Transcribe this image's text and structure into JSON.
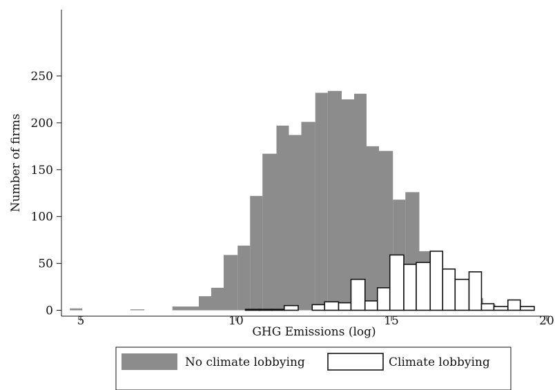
{
  "chart_data": {
    "type": "histogram",
    "xlabel": "GHG Emissions (log)",
    "ylabel": "Number of firms",
    "xlim": [
      4.6,
      20.0
    ],
    "ylim": [
      0,
      255
    ],
    "xticks": [
      5,
      10,
      15,
      20
    ],
    "yticks": [
      0,
      50,
      100,
      150,
      200,
      250
    ],
    "grid": false,
    "legend_position": "bottom",
    "series": [
      {
        "name": "No climate lobbying",
        "style": "filled",
        "color": "#8c8c8c",
        "bins": [
          {
            "x0": 4.65,
            "x1": 5.05,
            "value": 2
          },
          {
            "x0": 6.6,
            "x1": 7.05,
            "value": 1
          },
          {
            "x0": 7.95,
            "x1": 8.4,
            "value": 4
          },
          {
            "x0": 8.4,
            "x1": 8.8,
            "value": 4
          },
          {
            "x0": 8.8,
            "x1": 9.2,
            "value": 15
          },
          {
            "x0": 9.2,
            "x1": 9.6,
            "value": 24
          },
          {
            "x0": 9.6,
            "x1": 10.05,
            "value": 59
          },
          {
            "x0": 10.05,
            "x1": 10.45,
            "value": 69
          },
          {
            "x0": 10.45,
            "x1": 10.85,
            "value": 122
          },
          {
            "x0": 10.85,
            "x1": 11.3,
            "value": 167
          },
          {
            "x0": 11.3,
            "x1": 11.7,
            "value": 197
          },
          {
            "x0": 11.7,
            "x1": 12.1,
            "value": 187
          },
          {
            "x0": 12.1,
            "x1": 12.55,
            "value": 201
          },
          {
            "x0": 12.55,
            "x1": 12.95,
            "value": 232
          },
          {
            "x0": 12.95,
            "x1": 13.4,
            "value": 234
          },
          {
            "x0": 13.4,
            "x1": 13.8,
            "value": 225
          },
          {
            "x0": 13.8,
            "x1": 14.2,
            "value": 231
          },
          {
            "x0": 14.2,
            "x1": 14.6,
            "value": 175
          },
          {
            "x0": 14.6,
            "x1": 15.05,
            "value": 170
          },
          {
            "x0": 15.05,
            "x1": 15.45,
            "value": 118
          },
          {
            "x0": 15.45,
            "x1": 15.9,
            "value": 126
          },
          {
            "x0": 15.9,
            "x1": 16.3,
            "value": 63
          },
          {
            "x0": 16.3,
            "x1": 16.7,
            "value": 43
          },
          {
            "x0": 16.7,
            "x1": 17.1,
            "value": 24
          },
          {
            "x0": 17.1,
            "x1": 17.55,
            "value": 24
          },
          {
            "x0": 17.55,
            "x1": 17.95,
            "value": 13
          },
          {
            "x0": 17.95,
            "x1": 18.35,
            "value": 6
          },
          {
            "x0": 18.35,
            "x1": 18.8,
            "value": 4
          }
        ]
      },
      {
        "name": "Climate lobbying",
        "style": "outline",
        "color": "#ffffff",
        "bins": [
          {
            "x0": 10.3,
            "x1": 10.75,
            "value": 1
          },
          {
            "x0": 10.75,
            "x1": 11.15,
            "value": 1
          },
          {
            "x0": 11.15,
            "x1": 11.55,
            "value": 1
          },
          {
            "x0": 11.55,
            "x1": 12.0,
            "value": 5
          },
          {
            "x0": 12.45,
            "x1": 12.85,
            "value": 6
          },
          {
            "x0": 12.85,
            "x1": 13.3,
            "value": 9
          },
          {
            "x0": 13.3,
            "x1": 13.7,
            "value": 8
          },
          {
            "x0": 13.7,
            "x1": 14.15,
            "value": 33
          },
          {
            "x0": 14.15,
            "x1": 14.55,
            "value": 10
          },
          {
            "x0": 14.55,
            "x1": 14.95,
            "value": 24
          },
          {
            "x0": 14.95,
            "x1": 15.4,
            "value": 59
          },
          {
            "x0": 15.4,
            "x1": 15.8,
            "value": 49
          },
          {
            "x0": 15.8,
            "x1": 16.25,
            "value": 51
          },
          {
            "x0": 16.25,
            "x1": 16.65,
            "value": 63
          },
          {
            "x0": 16.65,
            "x1": 17.05,
            "value": 44
          },
          {
            "x0": 17.05,
            "x1": 17.5,
            "value": 33
          },
          {
            "x0": 17.5,
            "x1": 17.9,
            "value": 41
          },
          {
            "x0": 17.9,
            "x1": 18.3,
            "value": 7
          },
          {
            "x0": 18.3,
            "x1": 18.75,
            "value": 4
          },
          {
            "x0": 18.75,
            "x1": 19.15,
            "value": 11
          },
          {
            "x0": 19.15,
            "x1": 19.6,
            "value": 4
          }
        ]
      }
    ]
  }
}
